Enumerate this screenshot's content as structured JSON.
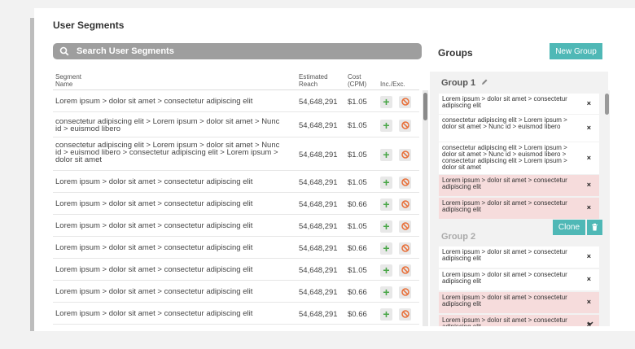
{
  "page": {
    "title": "User Segments"
  },
  "search": {
    "placeholder": "Search User Segments"
  },
  "table": {
    "headers": {
      "segment": "Segment\nName",
      "reach": "Estimated\nReach",
      "cost": "Cost\n(CPM)",
      "incexc": "Inc./Exc."
    },
    "rows": [
      {
        "segment": "Lorem ipsum > dolor sit amet > consectetur adipiscing elit",
        "reach": "54,648,291",
        "cost": "$1.05"
      },
      {
        "segment": "consectetur adipiscing elit > Lorem ipsum > dolor sit amet > Nunc id > euismod libero",
        "reach": "54,648,291",
        "cost": "$1.05"
      },
      {
        "segment": "consectetur adipiscing elit > Lorem ipsum > dolor sit amet > Nunc id > euismod libero > consectetur adipiscing elit > Lorem ipsum > dolor sit amet",
        "reach": "54,648,291",
        "cost": "$1.05"
      },
      {
        "segment": "Lorem ipsum > dolor sit amet > consectetur adipiscing elit",
        "reach": "54,648,291",
        "cost": "$1.05"
      },
      {
        "segment": "Lorem ipsum > dolor sit amet > consectetur adipiscing elit",
        "reach": "54,648,291",
        "cost": "$0.66"
      },
      {
        "segment": "Lorem ipsum > dolor sit amet > consectetur adipiscing elit",
        "reach": "54,648,291",
        "cost": "$1.05"
      },
      {
        "segment": "Lorem ipsum > dolor sit amet > consectetur adipiscing elit",
        "reach": "54,648,291",
        "cost": "$0.66"
      },
      {
        "segment": "Lorem ipsum > dolor sit amet > consectetur adipiscing elit",
        "reach": "54,648,291",
        "cost": "$1.05"
      },
      {
        "segment": "Lorem ipsum > dolor sit amet > consectetur adipiscing elit",
        "reach": "54,648,291",
        "cost": "$0.66"
      },
      {
        "segment": "Lorem ipsum > dolor sit amet > consectetur adipiscing elit",
        "reach": "54,648,291",
        "cost": "$0.66"
      }
    ]
  },
  "groups": {
    "title": "Groups",
    "new_group_label": "New Group",
    "group1": {
      "name": "Group 1",
      "items": [
        {
          "text": "Lorem ipsum > dolor sit amet > consectetur adipiscing elit",
          "excluded": false
        },
        {
          "text": "consectetur adipiscing elit > Lorem ipsum > dolor sit amet > Nunc id > euismod libero",
          "excluded": false
        },
        {
          "text": "consectetur adipiscing elit > Lorem ipsum > dolor sit amet > Nunc id > euismod libero > consectetur adipiscing elit > Lorem ipsum > dolor sit amet",
          "excluded": false
        },
        {
          "text": "Lorem ipsum > dolor sit amet > consectetur adipiscing elit",
          "excluded": true
        },
        {
          "text": "Lorem ipsum > dolor sit amet > consectetur adipiscing elit",
          "excluded": true
        }
      ]
    },
    "clone_label": "Clone",
    "group2": {
      "name": "Group 2",
      "items": [
        {
          "text": "Lorem ipsum > dolor sit amet > consectetur adipiscing elit",
          "excluded": false
        },
        {
          "text": "Lorem ipsum > dolor sit amet > consectetur adipiscing elit",
          "excluded": false
        },
        {
          "text": "Lorem ipsum > dolor sit amet > consectetur adipiscing elit",
          "excluded": true
        },
        {
          "text": "Lorem ipsum > dolor sit amet > consectetur adipiscing elit",
          "excluded": true
        }
      ]
    },
    "remove_symbol": "×"
  },
  "colors": {
    "accent": "#4fb8b6",
    "include": "#49a647",
    "exclude": "#e8703a",
    "excluded_bg": "#f6dcdc"
  }
}
